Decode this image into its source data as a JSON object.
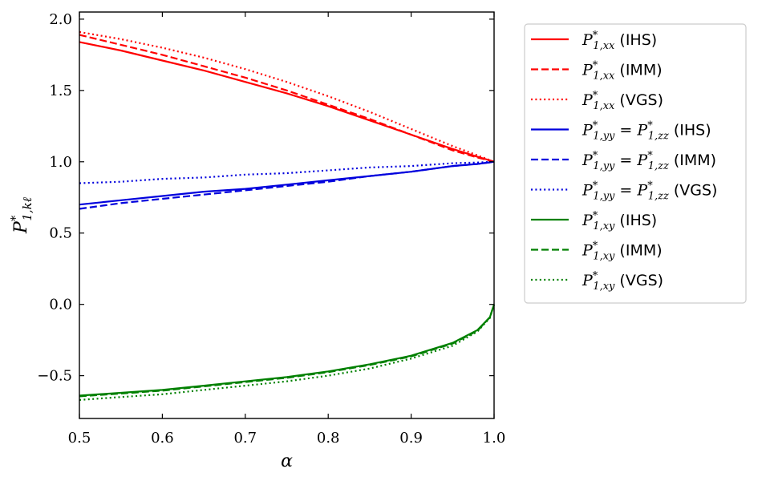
{
  "chart_data": {
    "type": "line",
    "xlabel": "α",
    "ylabel": "P*1,kℓ",
    "xlim": [
      0.5,
      1.0
    ],
    "ylim": [
      -0.8,
      2.05
    ],
    "xticks": [
      0.5,
      0.6,
      0.7,
      0.8,
      0.9,
      1.0
    ],
    "xtick_labels": [
      "0.5",
      "0.6",
      "0.7",
      "0.8",
      "0.9",
      "1.0"
    ],
    "yticks": [
      -0.5,
      0.0,
      0.5,
      1.0,
      1.5,
      2.0
    ],
    "ytick_labels": [
      "−0.5",
      "0.0",
      "0.5",
      "1.0",
      "1.5",
      "2.0"
    ],
    "grid": false,
    "legend_position": "outside-right",
    "x": [
      0.5,
      0.55,
      0.6,
      0.65,
      0.7,
      0.75,
      0.8,
      0.85,
      0.9,
      0.95,
      0.98,
      0.995,
      1.0
    ],
    "series": [
      {
        "name": "P*1,xx (IHS)",
        "label_main": "P",
        "label_sub": "1,xx",
        "label_eq": "",
        "label_tag": "(IHS)",
        "color": "#ff0000",
        "dash": "solid",
        "y": [
          1.84,
          1.78,
          1.71,
          1.64,
          1.56,
          1.48,
          1.39,
          1.29,
          1.19,
          1.09,
          1.035,
          1.01,
          1.0
        ]
      },
      {
        "name": "P*1,xx (IMM)",
        "label_main": "P",
        "label_sub": "1,xx",
        "label_eq": "",
        "label_tag": "(IMM)",
        "color": "#ff0000",
        "dash": "dashed",
        "y": [
          1.89,
          1.82,
          1.75,
          1.67,
          1.59,
          1.5,
          1.4,
          1.3,
          1.19,
          1.08,
          1.03,
          1.008,
          1.0
        ]
      },
      {
        "name": "P*1,xx (VGS)",
        "label_main": "P",
        "label_sub": "1,xx",
        "label_eq": "",
        "label_tag": "(VGS)",
        "color": "#ff0000",
        "dash": "dotted",
        "y": [
          1.91,
          1.86,
          1.8,
          1.73,
          1.65,
          1.56,
          1.46,
          1.35,
          1.23,
          1.11,
          1.045,
          1.012,
          1.0
        ]
      },
      {
        "name": "P*1,yy = P*1,zz (IHS)",
        "label_main": "P",
        "label_sub": "1,yy",
        "label_eq": "1,zz",
        "label_tag": "(IHS)",
        "color": "#0000dd",
        "dash": "solid",
        "y": [
          0.7,
          0.73,
          0.76,
          0.79,
          0.81,
          0.84,
          0.87,
          0.9,
          0.93,
          0.97,
          0.985,
          0.996,
          1.0
        ]
      },
      {
        "name": "P*1,yy = P*1,zz (IMM)",
        "label_main": "P",
        "label_sub": "1,yy",
        "label_eq": "1,zz",
        "label_tag": "(IMM)",
        "color": "#0000dd",
        "dash": "dashed",
        "y": [
          0.67,
          0.71,
          0.74,
          0.77,
          0.8,
          0.83,
          0.86,
          0.9,
          0.93,
          0.97,
          0.985,
          0.996,
          1.0
        ]
      },
      {
        "name": "P*1,yy = P*1,zz (VGS)",
        "label_main": "P",
        "label_sub": "1,yy",
        "label_eq": "1,zz",
        "label_tag": "(VGS)",
        "color": "#0000dd",
        "dash": "dotted",
        "y": [
          0.85,
          0.86,
          0.88,
          0.89,
          0.91,
          0.92,
          0.94,
          0.96,
          0.97,
          0.99,
          0.995,
          0.999,
          1.0
        ]
      },
      {
        "name": "P*1,xy (IHS)",
        "label_main": "P",
        "label_sub": "1,xy",
        "label_eq": "",
        "label_tag": "(IHS)",
        "color": "#008000",
        "dash": "solid",
        "y": [
          -0.64,
          -0.62,
          -0.6,
          -0.57,
          -0.54,
          -0.51,
          -0.47,
          -0.42,
          -0.36,
          -0.27,
          -0.18,
          -0.09,
          0.0
        ]
      },
      {
        "name": "P*1,xy (IMM)",
        "label_main": "P",
        "label_sub": "1,xy",
        "label_eq": "",
        "label_tag": "(IMM)",
        "color": "#008000",
        "dash": "dashed",
        "y": [
          -0.645,
          -0.625,
          -0.605,
          -0.575,
          -0.545,
          -0.515,
          -0.475,
          -0.425,
          -0.365,
          -0.275,
          -0.185,
          -0.09,
          0.0
        ]
      },
      {
        "name": "P*1,xy (VGS)",
        "label_main": "P",
        "label_sub": "1,xy",
        "label_eq": "",
        "label_tag": "(VGS)",
        "color": "#008000",
        "dash": "dotted",
        "y": [
          -0.67,
          -0.65,
          -0.63,
          -0.6,
          -0.57,
          -0.54,
          -0.5,
          -0.45,
          -0.38,
          -0.29,
          -0.19,
          -0.095,
          0.0
        ]
      }
    ]
  }
}
